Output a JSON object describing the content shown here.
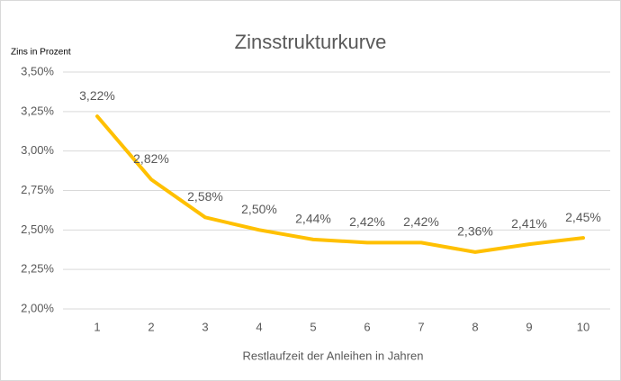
{
  "chart_data": {
    "type": "line",
    "title": "Zinsstrukturkurve",
    "y_label": "Zins in Prozent",
    "x_label": "Restlaufzeit der Anleihen in Jahren",
    "categories": [
      "1",
      "2",
      "3",
      "4",
      "5",
      "6",
      "7",
      "8",
      "9",
      "10"
    ],
    "values": [
      3.22,
      2.82,
      2.58,
      2.5,
      2.44,
      2.42,
      2.42,
      2.36,
      2.41,
      2.45
    ],
    "value_labels": [
      "3,22%",
      "2,82%",
      "2,58%",
      "2,50%",
      "2,44%",
      "2,42%",
      "2,42%",
      "2,36%",
      "2,41%",
      "2,45%"
    ],
    "color": "#ffc000",
    "ylim": [
      2.0,
      3.5
    ],
    "yticks": [
      {
        "value": 2.0,
        "label": "2,00%"
      },
      {
        "value": 2.25,
        "label": "2,25%"
      },
      {
        "value": 2.5,
        "label": "2,50%"
      },
      {
        "value": 2.75,
        "label": "2,75%"
      },
      {
        "value": 3.0,
        "label": "3,00%"
      },
      {
        "value": 3.25,
        "label": "3,25%"
      },
      {
        "value": 3.5,
        "label": "3,50%"
      }
    ],
    "grid": true
  }
}
